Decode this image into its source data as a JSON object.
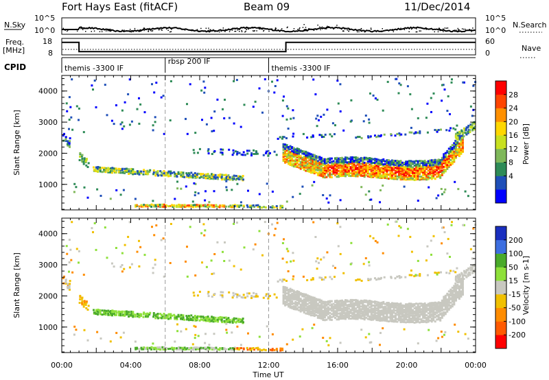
{
  "header": {
    "station": "Fort Hays East (fitACF)",
    "beam": "Beam 09",
    "date": "11/Dec/2014"
  },
  "noise_panel": {
    "left_label": "N.Sky",
    "left_ticks": [
      "10^5",
      "10^0"
    ],
    "right_label": "N.Search",
    "right_ticks": [
      "10^5",
      "10^0"
    ]
  },
  "freq_panel": {
    "left_label_1": "Freq.",
    "left_label_2": "[MHz]",
    "left_ticks": [
      "18",
      "8"
    ],
    "right_label": "Nave",
    "right_ticks": [
      "60",
      "0"
    ],
    "freq_steps": [
      {
        "start_ut": 0.0,
        "end_ut": 1.0,
        "freq": 17.0
      },
      {
        "start_ut": 1.0,
        "end_ut": 13.0,
        "freq": 9.5
      },
      {
        "start_ut": 13.0,
        "end_ut": 24.0,
        "freq": 17.0
      }
    ]
  },
  "cpid_panel": {
    "label": "CPID",
    "segments": [
      {
        "start_ut": 0.0,
        "end_ut": 6.0,
        "name": "themis -3300 IF"
      },
      {
        "start_ut": 6.0,
        "end_ut": 12.0,
        "name": "rbsp 200 IF"
      },
      {
        "start_ut": 12.0,
        "end_ut": 24.0,
        "name": "themis -3300 IF"
      }
    ]
  },
  "x_axis": {
    "label": "Time UT",
    "ticks": [
      "00:00",
      "04:00",
      "08:00",
      "12:00",
      "16:00",
      "20:00",
      "00:00"
    ],
    "tick_hours": [
      0,
      4,
      8,
      12,
      16,
      20,
      24
    ],
    "range_hours": [
      0,
      24
    ]
  },
  "power_panel": {
    "ylabel": "Slant Range [km]",
    "yticks": [
      "1000",
      "2000",
      "3000",
      "4000"
    ],
    "colorbar_label": "Power [dB]",
    "colorbar_ticks": [
      "28",
      "24",
      "20",
      "16",
      "12",
      "8",
      "4"
    ],
    "colors": [
      "#0000ff",
      "#1f4fb8",
      "#2e8b57",
      "#7fb85a",
      "#c8e020",
      "#ffd700",
      "#ff9000",
      "#ff4500",
      "#ff0000"
    ]
  },
  "velocity_panel": {
    "ylabel": "Slant Range [km]",
    "yticks": [
      "1000",
      "2000",
      "3000",
      "4000"
    ],
    "colorbar_label": "Velocity [m s-1]",
    "colorbar_ticks": [
      "200",
      "100",
      "50",
      "15",
      "-15",
      "-50",
      "-100",
      "-200"
    ],
    "colors": [
      "#1a2fbf",
      "#3d6fe0",
      "#4aaa2a",
      "#8ee03a",
      "#c8c8c0",
      "#f0c000",
      "#ff8c00",
      "#ff5a00",
      "#ff0000"
    ]
  },
  "chart_data": [
    {
      "type": "heatmap",
      "title": "Power",
      "xlabel": "Time UT",
      "ylabel": "Slant Range [km]",
      "xlim": [
        0,
        24
      ],
      "ylim": [
        180,
        4500
      ],
      "colorbar": {
        "label": "Power [dB]",
        "range": [
          0,
          32
        ]
      },
      "features": [
        {
          "t_start": 1.8,
          "t_end": 10.5,
          "range_start": 1550,
          "range_end": 1150,
          "power_db": [
            4,
            16
          ]
        },
        {
          "t_start": 4.2,
          "t_end": 10.5,
          "range_start": 330,
          "range_end": 330,
          "power_db": [
            8,
            20
          ]
        },
        {
          "t_start": 12.8,
          "t_end": 23.2,
          "range_start": 1750,
          "range_end": 1500,
          "power_db": [
            8,
            24
          ]
        },
        {
          "t_start": 0.0,
          "t_end": 0.6,
          "range_start": 2400,
          "range_end": 2400,
          "power_db": [
            4,
            12
          ]
        }
      ]
    },
    {
      "type": "heatmap",
      "title": "Velocity",
      "xlabel": "Time UT",
      "ylabel": "Slant Range [km]",
      "xlim": [
        0,
        24
      ],
      "ylim": [
        180,
        4500
      ],
      "colorbar": {
        "label": "Velocity [m s-1]",
        "range": [
          -250,
          250
        ]
      },
      "features": [
        {
          "t_start": 1.8,
          "t_end": 10.5,
          "range_start": 1550,
          "range_end": 1150,
          "velocity_ms": [
            15,
            100
          ]
        },
        {
          "t_start": 4.2,
          "t_end": 10.5,
          "range_start": 330,
          "range_end": 330,
          "velocity_ms": [
            15,
            100
          ]
        },
        {
          "t_start": 10.0,
          "t_end": 12.5,
          "range_start": 330,
          "range_end": 330,
          "velocity_ms": [
            -100,
            -15
          ]
        },
        {
          "t_start": 12.8,
          "t_end": 23.2,
          "range_start": 1750,
          "range_end": 1500,
          "velocity_ms": [
            -15,
            15
          ]
        }
      ]
    }
  ]
}
